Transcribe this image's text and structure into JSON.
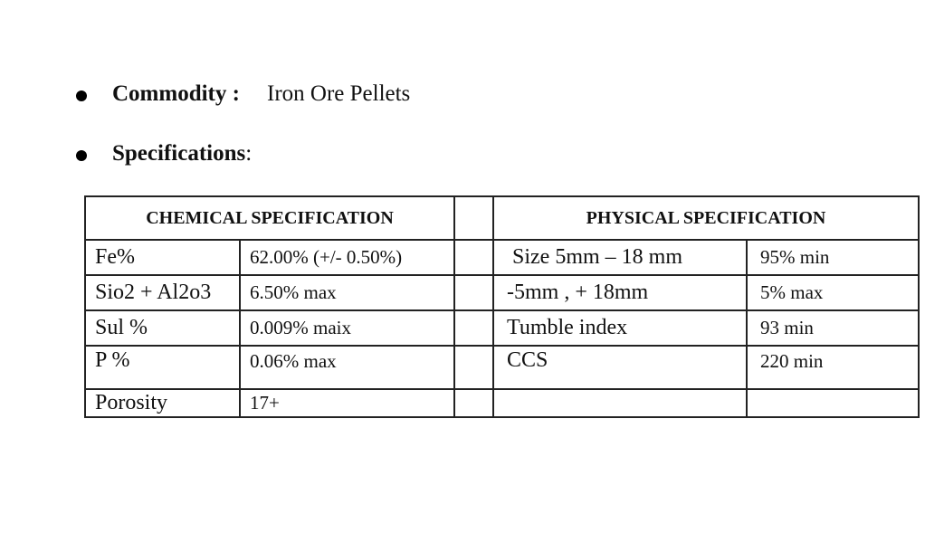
{
  "commodity": {
    "label": "Commodity :",
    "value": "Iron Ore Pellets"
  },
  "specifications": {
    "label": "Specifications",
    "colon": ":"
  },
  "table": {
    "chemical_header": "CHEMICAL SPECIFICATION",
    "physical_header": "PHYSICAL SPECIFICATION",
    "rows": [
      {
        "chem_param": "Fe%",
        "chem_value": "62.00% (+/- 0.50%)",
        "phys_param": "Size 5mm – 18 mm",
        "phys_value": "95% min"
      },
      {
        "chem_param": "Sio2 + Al2o3",
        "chem_value": "6.50% max",
        "phys_param": "-5mm , + 18mm",
        "phys_value": "5% max"
      },
      {
        "chem_param": "Sul %",
        "chem_value": "0.009% maix",
        "phys_param": "Tumble index",
        "phys_value": "93 min"
      },
      {
        "chem_param": "P %",
        "chem_value": "0.06% max",
        "phys_param": "CCS",
        "phys_value": "220 min"
      },
      {
        "chem_param": "Porosity",
        "chem_value": "17+",
        "phys_param": "",
        "phys_value": ""
      }
    ]
  }
}
